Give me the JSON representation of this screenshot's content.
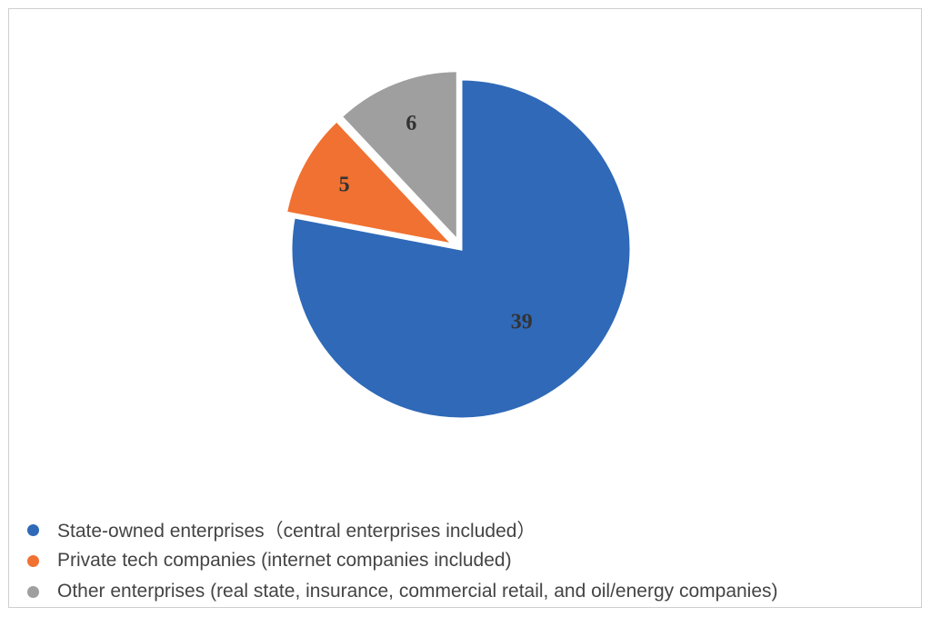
{
  "chart_data": {
    "type": "pie",
    "start_angle_deg": 0,
    "direction": "clockwise",
    "slices": [
      {
        "label": "State-owned enterprises（central enterprises included）",
        "value": 39,
        "color": "#2f69b8"
      },
      {
        "label": "Private tech companies (internet companies included)",
        "value": 5,
        "color": "#f07131"
      },
      {
        "label": "Other enterprises (real state, insurance, commercial retail, and oil/energy companies)",
        "value": 6,
        "color": "#9f9f9f"
      }
    ],
    "data_labels": [
      "39",
      "5",
      "6"
    ],
    "legend": {
      "placement": "bottom-left",
      "entries": [
        "State-owned enterprises（central enterprises included）",
        "Private tech companies (internet companies included)",
        "Other enterprises (real state, insurance, commercial retail, and oil/energy companies)"
      ]
    },
    "exploded": true
  }
}
